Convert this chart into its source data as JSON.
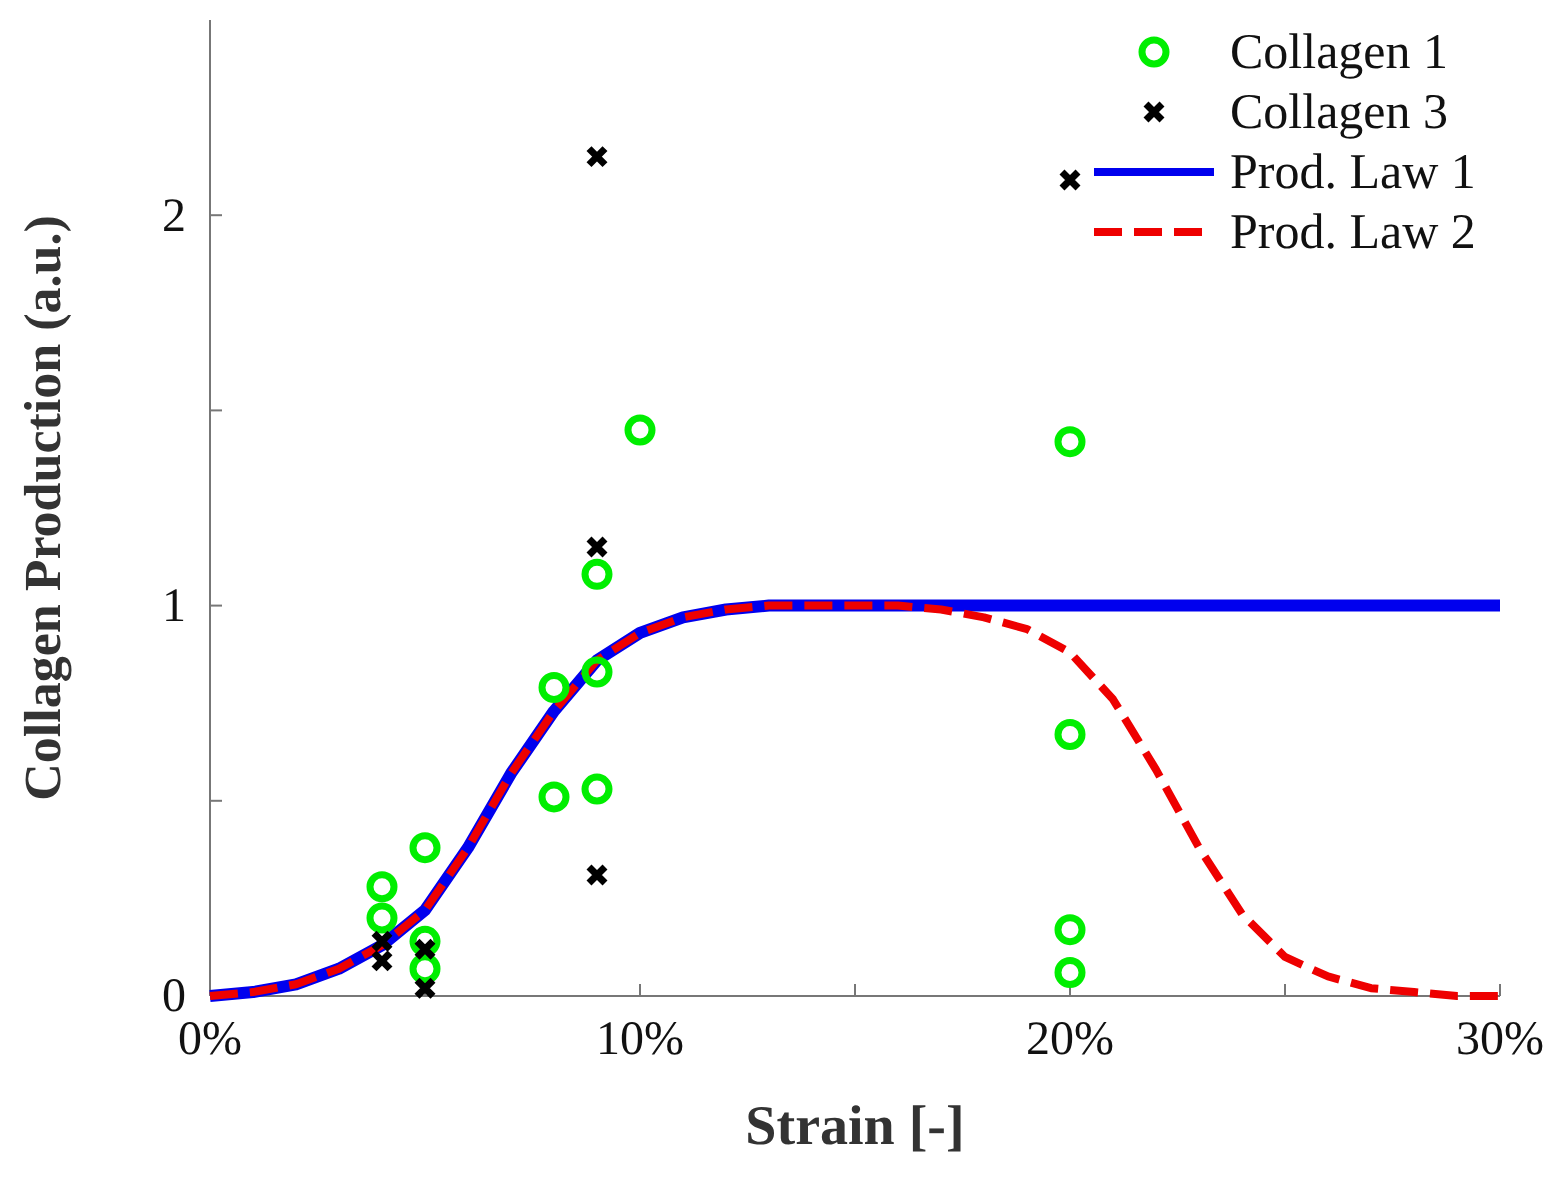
{
  "chart_data": {
    "type": "scatter",
    "xlabel": "Strain [-]",
    "ylabel": "Collagen Production (a.u.)",
    "xlim": [
      0,
      30
    ],
    "xticks": [
      {
        "value": 0,
        "label": "0%"
      },
      {
        "value": 5,
        "label": null
      },
      {
        "value": 10,
        "label": "10%"
      },
      {
        "value": 15,
        "label": null
      },
      {
        "value": 20,
        "label": "20%"
      },
      {
        "value": 25,
        "label": null
      },
      {
        "value": 30,
        "label": "30%"
      }
    ],
    "ylim": [
      0,
      2.5
    ],
    "yticks": [
      0,
      {
        "value": 0.5,
        "label": null
      },
      1,
      {
        "value": 1.5,
        "label": null
      },
      2
    ],
    "legend": "top right",
    "grid": false,
    "series": [
      {
        "name": "Collagen 1",
        "marker": "circle",
        "color": "#00ee00",
        "x": [
          4,
          4,
          5,
          5,
          5,
          8,
          8,
          9,
          9,
          9,
          10,
          20,
          20,
          20,
          20
        ],
        "values": [
          0.28,
          0.2,
          0.38,
          0.14,
          0.07,
          0.79,
          0.51,
          1.08,
          0.83,
          0.53,
          1.45,
          1.42,
          0.67,
          0.17,
          0.06
        ]
      },
      {
        "name": "Collagen 3",
        "marker": "cross",
        "color": "#000000",
        "x": [
          9,
          9,
          9,
          4,
          4,
          5,
          5,
          20
        ],
        "values": [
          2.15,
          1.15,
          0.31,
          0.14,
          0.09,
          0.12,
          0.02,
          2.09
        ]
      },
      {
        "name": "Prod. Law 1",
        "type": "line",
        "line_style": "solid",
        "color": "#0000ee",
        "x": [
          0,
          1,
          2,
          3,
          4,
          5,
          6,
          7,
          8,
          9,
          10,
          11,
          12,
          13,
          14,
          30
        ],
        "values": [
          0,
          0.01,
          0.03,
          0.07,
          0.13,
          0.22,
          0.38,
          0.57,
          0.73,
          0.86,
          0.93,
          0.97,
          0.99,
          1,
          1,
          1
        ]
      },
      {
        "name": "Prod. Law 2",
        "type": "line",
        "line_style": "dashed",
        "color": "#ee0000",
        "x": [
          0,
          1,
          2,
          3,
          4,
          5,
          6,
          7,
          8,
          9,
          10,
          11,
          12,
          13,
          14,
          15,
          16,
          17,
          18,
          19,
          20,
          21,
          22,
          23,
          24,
          25,
          26,
          27,
          28,
          29,
          30
        ],
        "values": [
          0,
          0.01,
          0.03,
          0.07,
          0.13,
          0.22,
          0.38,
          0.57,
          0.73,
          0.86,
          0.93,
          0.97,
          0.99,
          1,
          1,
          1,
          1,
          0.99,
          0.97,
          0.94,
          0.88,
          0.76,
          0.58,
          0.38,
          0.21,
          0.1,
          0.05,
          0.02,
          0.01,
          0,
          0
        ]
      }
    ]
  }
}
